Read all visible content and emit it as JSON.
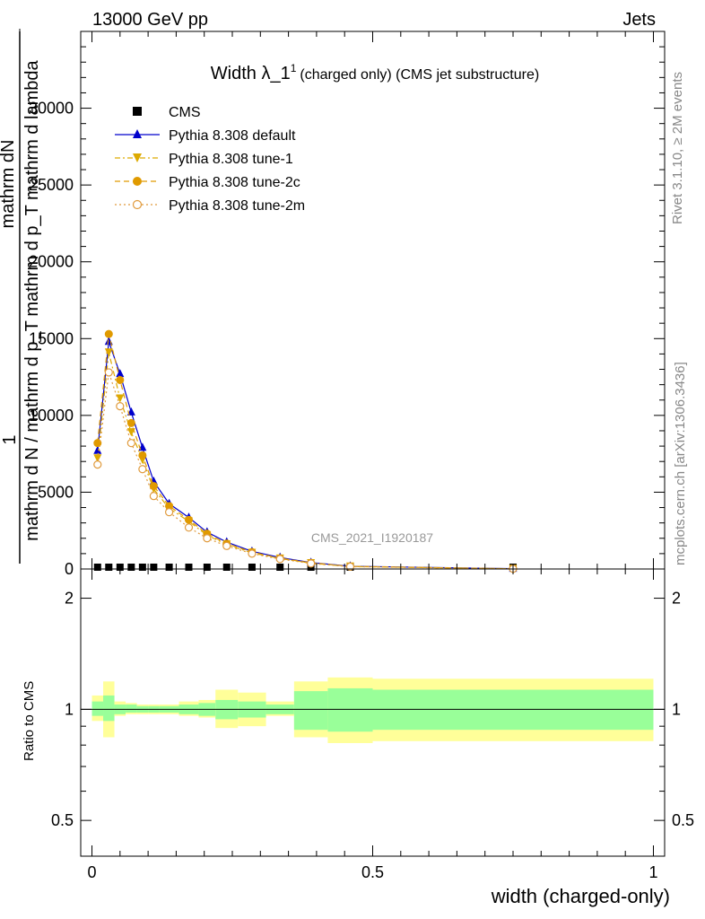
{
  "header": {
    "left": "13000 GeV pp",
    "right": "Jets"
  },
  "side_labels": {
    "rivet": "Rivet 3.1.10, ≥ 2M events",
    "mcplots": "mcplots.cern.ch [arXiv:1306.3436]"
  },
  "chart_data": {
    "type": "line",
    "title_main": "Width λ_1",
    "title_sup": "1",
    "title_sub": "(charged only) (CMS jet substructure)",
    "watermark": "CMS_2021_I1920187",
    "xlabel": "width (charged-only)",
    "ylabel_num": "1",
    "ylabel_den_top": "mathrm dN",
    "ylabel_den_mid": "mathrm d p_T mathrm d lambda",
    "ylabel_den_bot": "mathrm d N / mathrm d p_T",
    "xlim": [
      -0.02,
      1.02
    ],
    "ylim": [
      0,
      35000
    ],
    "xticks": [
      {
        "v": 0,
        "label": "0"
      },
      {
        "v": 0.5,
        "label": "0.5"
      },
      {
        "v": 1,
        "label": "1"
      }
    ],
    "yticks": [
      {
        "v": 0,
        "label": "0"
      },
      {
        "v": 5000,
        "label": "5000"
      },
      {
        "v": 10000,
        "label": "10000"
      },
      {
        "v": 15000,
        "label": "15000"
      },
      {
        "v": 20000,
        "label": "20000"
      },
      {
        "v": 25000,
        "label": "25000"
      },
      {
        "v": 30000,
        "label": "30000"
      }
    ],
    "ratio": {
      "ylabel": "Ratio to CMS",
      "ylim": [
        0.4,
        2.4
      ],
      "log_scale": true,
      "yticks": [
        {
          "v": 0.5,
          "label": "0.5"
        },
        {
          "v": 1,
          "label": "1"
        },
        {
          "v": 2,
          "label": "2"
        }
      ],
      "bins": [
        {
          "lo": 0.0,
          "hi": 0.02,
          "in_lo": 0.96,
          "in_hi": 1.05,
          "out_lo": 0.93,
          "out_hi": 1.09
        },
        {
          "lo": 0.02,
          "hi": 0.04,
          "in_lo": 0.93,
          "in_hi": 1.09,
          "out_lo": 0.84,
          "out_hi": 1.19
        },
        {
          "lo": 0.04,
          "hi": 0.06,
          "in_lo": 0.97,
          "in_hi": 1.03,
          "out_lo": 0.96,
          "out_hi": 1.05
        },
        {
          "lo": 0.06,
          "hi": 0.08,
          "in_lo": 0.98,
          "in_hi": 1.03,
          "out_lo": 0.97,
          "out_hi": 1.04
        },
        {
          "lo": 0.08,
          "hi": 0.1,
          "in_lo": 0.98,
          "in_hi": 1.02,
          "out_lo": 0.97,
          "out_hi": 1.03
        },
        {
          "lo": 0.1,
          "hi": 0.12,
          "in_lo": 0.98,
          "in_hi": 1.02,
          "out_lo": 0.97,
          "out_hi": 1.03
        },
        {
          "lo": 0.12,
          "hi": 0.155,
          "in_lo": 0.98,
          "in_hi": 1.02,
          "out_lo": 0.97,
          "out_hi": 1.03
        },
        {
          "lo": 0.155,
          "hi": 0.19,
          "in_lo": 0.97,
          "in_hi": 1.03,
          "out_lo": 0.96,
          "out_hi": 1.05
        },
        {
          "lo": 0.19,
          "hi": 0.22,
          "in_lo": 0.96,
          "in_hi": 1.04,
          "out_lo": 0.95,
          "out_hi": 1.06
        },
        {
          "lo": 0.22,
          "hi": 0.26,
          "in_lo": 0.94,
          "in_hi": 1.06,
          "out_lo": 0.89,
          "out_hi": 1.13
        },
        {
          "lo": 0.26,
          "hi": 0.31,
          "in_lo": 0.95,
          "in_hi": 1.05,
          "out_lo": 0.9,
          "out_hi": 1.11
        },
        {
          "lo": 0.31,
          "hi": 0.36,
          "in_lo": 0.97,
          "in_hi": 1.03,
          "out_lo": 0.96,
          "out_hi": 1.05
        },
        {
          "lo": 0.36,
          "hi": 0.42,
          "in_lo": 0.88,
          "in_hi": 1.12,
          "out_lo": 0.84,
          "out_hi": 1.19
        },
        {
          "lo": 0.42,
          "hi": 0.5,
          "in_lo": 0.87,
          "in_hi": 1.14,
          "out_lo": 0.81,
          "out_hi": 1.22
        },
        {
          "lo": 0.5,
          "hi": 1.0,
          "in_lo": 0.88,
          "in_hi": 1.13,
          "out_lo": 0.82,
          "out_hi": 1.21
        }
      ]
    },
    "series": [
      {
        "name": "CMS",
        "marker": "square",
        "color": "#000000",
        "dash": "",
        "x": [
          0.01,
          0.03,
          0.05,
          0.07,
          0.09,
          0.11,
          0.1375,
          0.1725,
          0.205,
          0.24,
          0.285,
          0.335,
          0.39,
          0.46,
          0.75
        ],
        "y": [
          20,
          20,
          20,
          20,
          20,
          20,
          20,
          20,
          20,
          20,
          20,
          20,
          20,
          20,
          0
        ]
      },
      {
        "name": "Pythia 8.308 default",
        "marker": "triangle-up",
        "color": "#0000cc",
        "dash": "",
        "x": [
          0.01,
          0.03,
          0.05,
          0.07,
          0.09,
          0.11,
          0.1375,
          0.1725,
          0.205,
          0.24,
          0.285,
          0.335,
          0.39,
          0.46,
          0.75
        ],
        "y": [
          7700,
          14800,
          12700,
          10200,
          7900,
          5700,
          4250,
          3350,
          2400,
          1750,
          1150,
          750,
          420,
          180,
          20
        ]
      },
      {
        "name": "Pythia 8.308 tune-1",
        "marker": "triangle-down",
        "color": "#ddaa00",
        "dash": "6,3,2,3",
        "x": [
          0.01,
          0.03,
          0.05,
          0.07,
          0.09,
          0.11,
          0.1375,
          0.1725,
          0.205,
          0.24,
          0.285,
          0.335,
          0.39,
          0.46,
          0.75
        ],
        "y": [
          7200,
          14100,
          11100,
          8900,
          7100,
          5200,
          3950,
          3100,
          2200,
          1600,
          1050,
          680,
          380,
          160,
          15
        ]
      },
      {
        "name": "Pythia 8.308 tune-2c",
        "marker": "circle",
        "color": "#e09a00",
        "dash": "6,4",
        "x": [
          0.01,
          0.03,
          0.05,
          0.07,
          0.09,
          0.11,
          0.1375,
          0.1725,
          0.205,
          0.24,
          0.285,
          0.335,
          0.39,
          0.46,
          0.75
        ],
        "y": [
          8200,
          15300,
          12300,
          9500,
          7400,
          5400,
          4100,
          3200,
          2300,
          1650,
          1100,
          700,
          400,
          170,
          15
        ]
      },
      {
        "name": "Pythia 8.308 tune-2m",
        "marker": "circle-open",
        "color": "#e09a3c",
        "dash": "2,3",
        "x": [
          0.01,
          0.03,
          0.05,
          0.07,
          0.09,
          0.11,
          0.1375,
          0.1725,
          0.205,
          0.24,
          0.285,
          0.335,
          0.39,
          0.46,
          0.75
        ],
        "y": [
          6800,
          12800,
          10600,
          8200,
          6500,
          4750,
          3700,
          2700,
          2000,
          1500,
          1000,
          650,
          360,
          150,
          15
        ]
      }
    ]
  }
}
